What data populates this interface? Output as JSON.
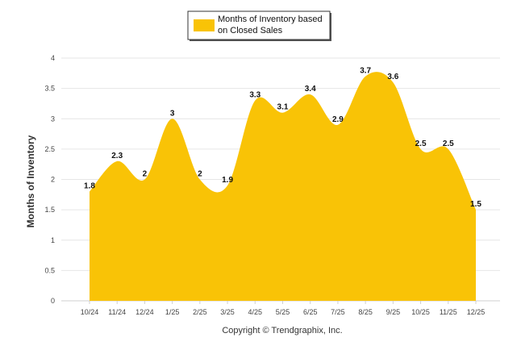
{
  "chart_data": {
    "type": "area",
    "categories": [
      "10/24",
      "11/24",
      "12/24",
      "1/25",
      "2/25",
      "3/25",
      "4/25",
      "5/25",
      "6/25",
      "7/25",
      "8/25",
      "9/25",
      "10/25",
      "11/25",
      "12/25"
    ],
    "series": [
      {
        "name": "Months of Inventory based on Closed Sales",
        "values": [
          1.8,
          2.3,
          2,
          3,
          2,
          1.9,
          3.3,
          3.1,
          3.4,
          2.9,
          3.7,
          3.6,
          2.5,
          2.5,
          1.5
        ],
        "data_labels": [
          "1.8",
          "2.3",
          "2",
          "3",
          "2",
          "1.9",
          "3.3",
          "3.1",
          "3.4",
          "2.9",
          "3.7",
          "3.6",
          "2.5",
          "2.5",
          "1.5"
        ],
        "color": "#F9C306"
      }
    ],
    "legend": {
      "line1": "Months of Inventory based",
      "line2": "on Closed Sales",
      "position": "top-center"
    },
    "ylabel": "Months of Inventory",
    "xlabel": "",
    "ylim": [
      0,
      4
    ],
    "yticks": [
      "0",
      "0.5",
      "1",
      "1.5",
      "2",
      "2.5",
      "3",
      "3.5",
      "4"
    ],
    "grid": true,
    "credit": "Copyright © Trendgraphix, Inc."
  }
}
